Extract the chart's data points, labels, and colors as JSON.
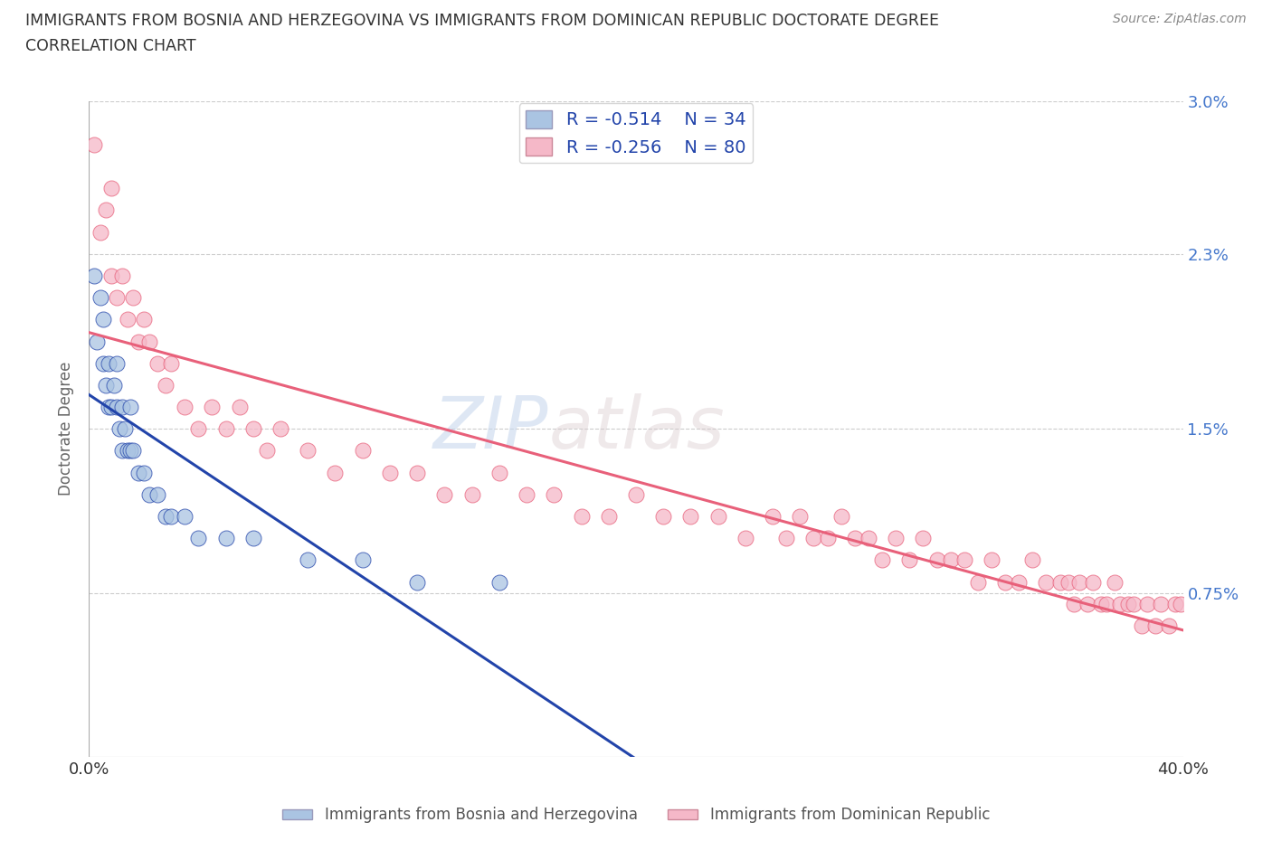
{
  "title_line1": "IMMIGRANTS FROM BOSNIA AND HERZEGOVINA VS IMMIGRANTS FROM DOMINICAN REPUBLIC DOCTORATE DEGREE",
  "title_line2": "CORRELATION CHART",
  "source_text": "Source: ZipAtlas.com",
  "ylabel": "Doctorate Degree",
  "xlim": [
    0.0,
    0.4
  ],
  "ylim": [
    0.0,
    0.03
  ],
  "xtick_labels": [
    "0.0%",
    "40.0%"
  ],
  "ytick_labels": [
    "0.75%",
    "1.5%",
    "2.3%",
    "3.0%"
  ],
  "ytick_values": [
    0.0075,
    0.015,
    0.023,
    0.03
  ],
  "legend_r1": "-0.514",
  "legend_n1": "34",
  "legend_r2": "-0.256",
  "legend_n2": "80",
  "color_bosnia": "#aac4e2",
  "color_dr": "#f5b8c8",
  "line_color_bosnia": "#2244aa",
  "line_color_dr": "#e8607a",
  "watermark_zip": "ZIP",
  "watermark_atlas": "atlas",
  "legend_label1": "Immigrants from Bosnia and Herzegovina",
  "legend_label2": "Immigrants from Dominican Republic",
  "bosnia_x": [
    0.002,
    0.003,
    0.004,
    0.005,
    0.005,
    0.006,
    0.007,
    0.007,
    0.008,
    0.009,
    0.01,
    0.01,
    0.011,
    0.012,
    0.012,
    0.013,
    0.014,
    0.015,
    0.015,
    0.016,
    0.018,
    0.02,
    0.022,
    0.025,
    0.028,
    0.03,
    0.035,
    0.04,
    0.05,
    0.06,
    0.08,
    0.1,
    0.12,
    0.15
  ],
  "bosnia_y": [
    0.022,
    0.019,
    0.021,
    0.018,
    0.02,
    0.017,
    0.016,
    0.018,
    0.016,
    0.017,
    0.016,
    0.018,
    0.015,
    0.016,
    0.014,
    0.015,
    0.014,
    0.014,
    0.016,
    0.014,
    0.013,
    0.013,
    0.012,
    0.012,
    0.011,
    0.011,
    0.011,
    0.01,
    0.01,
    0.01,
    0.009,
    0.009,
    0.008,
    0.008
  ],
  "dr_x": [
    0.002,
    0.004,
    0.006,
    0.008,
    0.008,
    0.01,
    0.012,
    0.014,
    0.016,
    0.018,
    0.02,
    0.022,
    0.025,
    0.028,
    0.03,
    0.035,
    0.04,
    0.045,
    0.05,
    0.055,
    0.06,
    0.065,
    0.07,
    0.08,
    0.09,
    0.1,
    0.11,
    0.12,
    0.13,
    0.14,
    0.15,
    0.16,
    0.17,
    0.18,
    0.19,
    0.2,
    0.21,
    0.22,
    0.23,
    0.24,
    0.25,
    0.255,
    0.26,
    0.265,
    0.27,
    0.275,
    0.28,
    0.285,
    0.29,
    0.295,
    0.3,
    0.305,
    0.31,
    0.315,
    0.32,
    0.325,
    0.33,
    0.335,
    0.34,
    0.345,
    0.35,
    0.355,
    0.358,
    0.36,
    0.362,
    0.365,
    0.367,
    0.37,
    0.372,
    0.375,
    0.377,
    0.38,
    0.382,
    0.385,
    0.387,
    0.39,
    0.392,
    0.395,
    0.397,
    0.399
  ],
  "dr_y": [
    0.028,
    0.024,
    0.025,
    0.022,
    0.026,
    0.021,
    0.022,
    0.02,
    0.021,
    0.019,
    0.02,
    0.019,
    0.018,
    0.017,
    0.018,
    0.016,
    0.015,
    0.016,
    0.015,
    0.016,
    0.015,
    0.014,
    0.015,
    0.014,
    0.013,
    0.014,
    0.013,
    0.013,
    0.012,
    0.012,
    0.013,
    0.012,
    0.012,
    0.011,
    0.011,
    0.012,
    0.011,
    0.011,
    0.011,
    0.01,
    0.011,
    0.01,
    0.011,
    0.01,
    0.01,
    0.011,
    0.01,
    0.01,
    0.009,
    0.01,
    0.009,
    0.01,
    0.009,
    0.009,
    0.009,
    0.008,
    0.009,
    0.008,
    0.008,
    0.009,
    0.008,
    0.008,
    0.008,
    0.007,
    0.008,
    0.007,
    0.008,
    0.007,
    0.007,
    0.008,
    0.007,
    0.007,
    0.007,
    0.006,
    0.007,
    0.006,
    0.007,
    0.006,
    0.007,
    0.007
  ]
}
